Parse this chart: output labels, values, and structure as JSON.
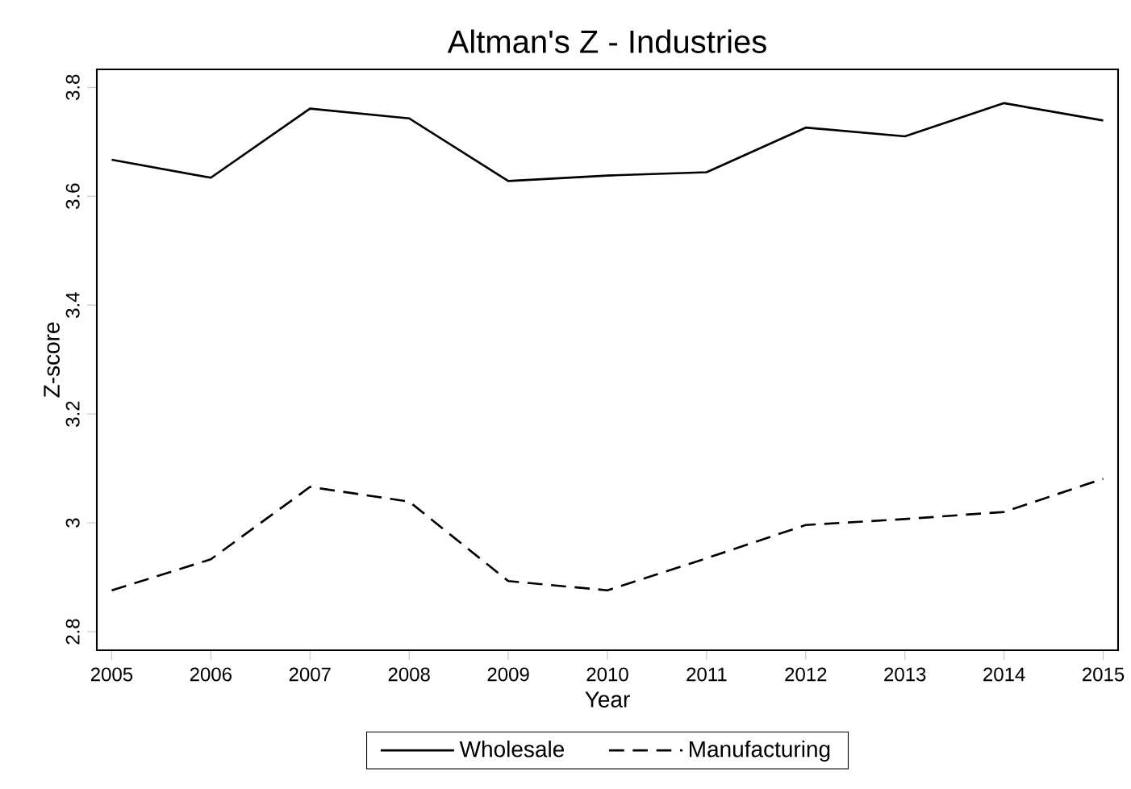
{
  "chart_data": {
    "type": "line",
    "title": "Altman's Z - Industries",
    "xlabel": "Year",
    "ylabel": "Z-score",
    "x": [
      2005,
      2006,
      2007,
      2008,
      2009,
      2010,
      2011,
      2012,
      2013,
      2014,
      2015
    ],
    "xlim": [
      2004.85,
      2015.15
    ],
    "xticks": [
      2005,
      2006,
      2007,
      2008,
      2009,
      2010,
      2011,
      2012,
      2013,
      2014,
      2015
    ],
    "ylim": [
      2.766,
      3.833
    ],
    "yticks": [
      2.8,
      3,
      3.2,
      3.4,
      3.6,
      3.8
    ],
    "grid": false,
    "legend": "bottom",
    "series": [
      {
        "name": "Wholesale",
        "color": "#000000",
        "line_style": "solid",
        "values": [
          3.667,
          3.634,
          3.761,
          3.743,
          3.628,
          3.638,
          3.644,
          3.726,
          3.71,
          3.771,
          3.739
        ]
      },
      {
        "name": "Manufacturing",
        "color": "#000000",
        "line_style": "dashed",
        "values": [
          2.876,
          2.933,
          3.066,
          3.039,
          2.893,
          2.876,
          2.935,
          2.996,
          3.007,
          3.02,
          3.081
        ]
      }
    ]
  }
}
